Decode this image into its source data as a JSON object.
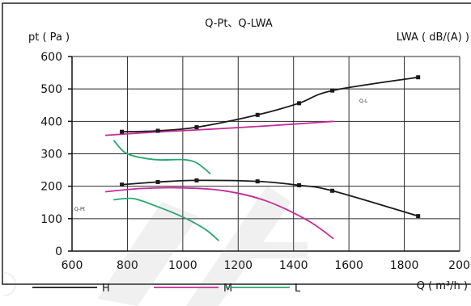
{
  "chart_data": {
    "type": "line",
    "title": "Q-Pt、Q-LWA",
    "ylabel": "pt ( Pa )",
    "y2label": "LWA ( dB/(A) )",
    "xlabel": "Q ( m³/h )",
    "xlim": [
      600,
      2000
    ],
    "ylim": [
      0,
      600
    ],
    "xticks": [
      600,
      800,
      1000,
      1200,
      1400,
      1600,
      1800,
      2000
    ],
    "yticks": [
      0,
      100,
      200,
      300,
      400,
      500,
      600
    ],
    "grid": true,
    "curve_labels": {
      "pt": "Q-Pt",
      "lwa": "Q-L"
    },
    "legend": [
      {
        "name": "H",
        "color": "#1a1a1a"
      },
      {
        "name": "M",
        "color": "#c8289a"
      },
      {
        "name": "L",
        "color": "#27a86e"
      }
    ],
    "series": [
      {
        "name": "H",
        "curve": "Q-LWA",
        "color": "#1a1a1a",
        "markers": true,
        "x": [
          780,
          910,
          1050,
          1270,
          1420,
          1540,
          1850
        ],
        "y": [
          368,
          371,
          382,
          420,
          456,
          495,
          536
        ]
      },
      {
        "name": "H",
        "curve": "Q-Pt",
        "color": "#1a1a1a",
        "markers": true,
        "x": [
          780,
          910,
          1050,
          1270,
          1420,
          1540,
          1850
        ],
        "y": [
          205,
          213,
          218,
          215,
          203,
          186,
          108
        ]
      },
      {
        "name": "M",
        "curve": "Q-LWA",
        "color": "#c8289a",
        "markers": false,
        "x": [
          720,
          900,
          1100,
          1300,
          1545
        ],
        "y": [
          357,
          367,
          376,
          386,
          400
        ]
      },
      {
        "name": "M",
        "curve": "Q-Pt",
        "color": "#c8289a",
        "markers": false,
        "x": [
          720,
          850,
          1000,
          1150,
          1300,
          1450,
          1545
        ],
        "y": [
          183,
          193,
          195,
          186,
          155,
          95,
          38
        ]
      },
      {
        "name": "L",
        "curve": "Q-LWA",
        "color": "#27a86e",
        "markers": false,
        "x": [
          750,
          800,
          900,
          1000,
          1050,
          1100
        ],
        "y": [
          342,
          300,
          282,
          282,
          272,
          238
        ]
      },
      {
        "name": "L",
        "curve": "Q-Pt",
        "color": "#27a86e",
        "markers": false,
        "x": [
          750,
          820,
          900,
          1000,
          1080,
          1130
        ],
        "y": [
          158,
          162,
          140,
          105,
          68,
          32
        ]
      }
    ]
  }
}
